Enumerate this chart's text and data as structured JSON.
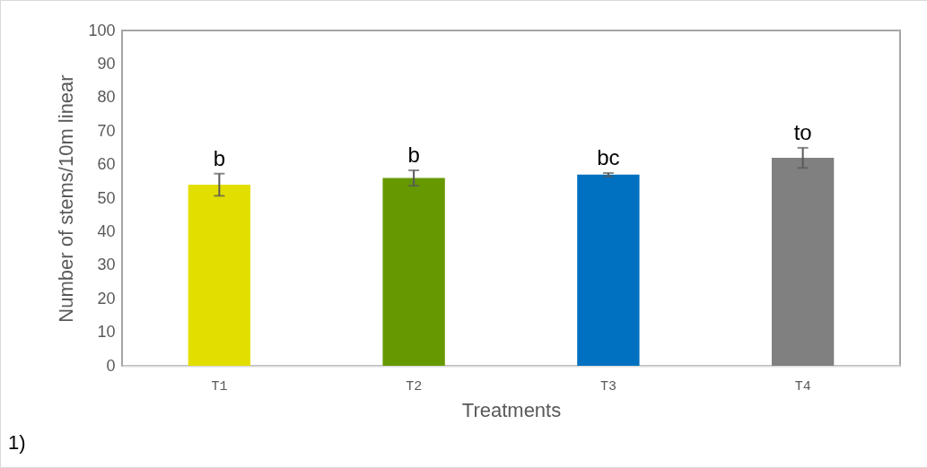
{
  "chart_data": {
    "type": "bar",
    "xlabel": "Treatments",
    "ylabel": "Number of stems/10m linear",
    "categories": [
      "T1",
      "T2",
      "T3",
      "T4"
    ],
    "values": [
      54,
      56,
      57,
      62
    ],
    "errors": [
      3.3,
      2.3,
      0.5,
      3
    ],
    "colors": [
      "#e2df00",
      "#669900",
      "#0070c0",
      "#808080"
    ],
    "ylim": [
      0,
      100
    ],
    "yticks": [
      0,
      10,
      20,
      30,
      40,
      50,
      60,
      70,
      80,
      90,
      100
    ],
    "grid": false,
    "annotations": [
      {
        "text": "b",
        "x": "T1",
        "y": 57.3
      },
      {
        "text": "b",
        "x": "T2",
        "y": 58.3
      },
      {
        "text": "bc",
        "x": "T3",
        "y": 57.5
      },
      {
        "text": "to",
        "x": "T4",
        "y": 65
      },
      "1)"
    ]
  }
}
